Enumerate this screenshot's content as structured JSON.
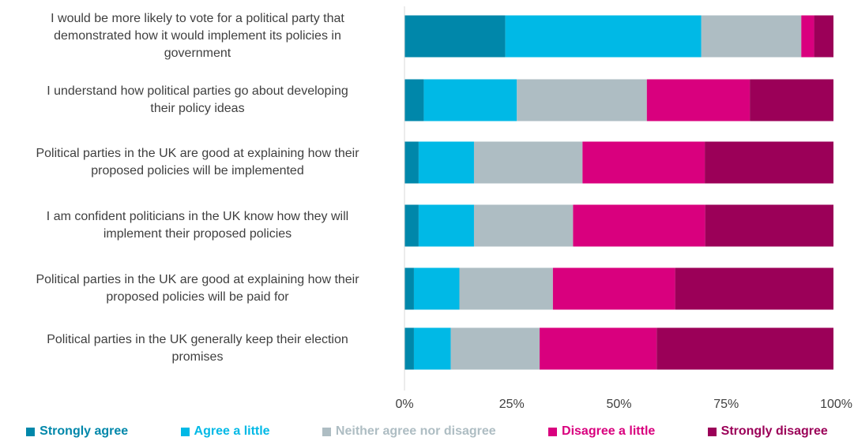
{
  "chart_data": {
    "type": "bar",
    "orientation": "horizontal",
    "stacked": true,
    "title": "",
    "xlabel": "",
    "ylabel": "",
    "xlim": [
      0,
      100
    ],
    "x_ticks": [
      "0%",
      "25%",
      "50%",
      "75%",
      "100%"
    ],
    "x_tick_values": [
      0,
      25,
      50,
      75,
      100
    ],
    "grid": false,
    "legend_position": "bottom",
    "categories": [
      "I would be more likely to vote for a political party that demonstrated how it would implement its policies in government",
      "I understand how political parties go about developing their policy ideas",
      "Political parties in the UK are good at explaining how their proposed policies will be implemented",
      "I am confident politicians in the UK know how they will implement their proposed policies",
      "Political parties in the UK are good at explaining how their proposed policies will be paid for",
      "Political parties in the UK generally keep their election promises"
    ],
    "category_lines": [
      [
        "I would be more likely to vote for a political party that",
        "demonstrated how it would implement its policies in",
        "government"
      ],
      [
        "I understand how political parties go about developing",
        "their policy ideas"
      ],
      [
        "Political parties in the UK are good at explaining how their",
        "proposed policies will be implemented"
      ],
      [
        "I am confident politicians in the UK know how they will",
        "implement their proposed policies"
      ],
      [
        "Political parties in the UK are good at explaining how their",
        "proposed policies will be paid for"
      ],
      [
        "Political parties in the UK generally keep their election",
        "promises"
      ]
    ],
    "series": [
      {
        "name": "Strongly agree",
        "color": "#0087aa",
        "values": [
          23.5,
          4.5,
          3.3,
          3.3,
          2.2,
          2.2
        ]
      },
      {
        "name": "Agree a little",
        "color": "#00b9e6",
        "values": [
          45.7,
          21.7,
          12.9,
          12.9,
          10.6,
          8.6
        ]
      },
      {
        "name": "Neither agree nor disagree",
        "color": "#aebdc3",
        "values": [
          23.3,
          30.3,
          25.3,
          23.1,
          21.8,
          20.7
        ]
      },
      {
        "name": "Disagree a little",
        "color": "#d9007e",
        "values": [
          3.0,
          24.0,
          28.5,
          30.8,
          28.5,
          27.3
        ]
      },
      {
        "name": "Strongly disagree",
        "color": "#9b0058",
        "values": [
          4.5,
          19.5,
          30.0,
          29.9,
          36.9,
          41.2
        ]
      }
    ]
  }
}
